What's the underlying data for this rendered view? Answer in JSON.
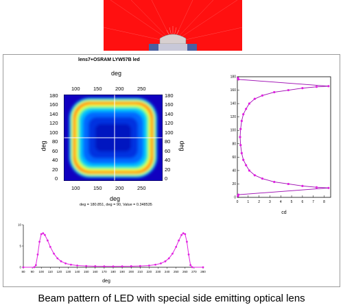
{
  "heatmap": {
    "title": "lens7+OSRAM LYW57B led",
    "x_axis_label": "deg",
    "y_axis_label": "deg",
    "x_ticks": [
      "100",
      "150",
      "200",
      "250"
    ],
    "y_ticks": [
      "0",
      "20",
      "40",
      "60",
      "80",
      "100",
      "120",
      "140",
      "160",
      "180"
    ],
    "readout": "deg = 180.851, deg = 90, Value = 0.348535",
    "crosshair_x": 180.851,
    "crosshair_y": 90
  },
  "caption": "Beam pattern of  LED with special side emitting optical lens",
  "chart_data": [
    {
      "type": "heatmap",
      "title": "lens7+OSRAM LYW57B led",
      "xlabel": "deg",
      "ylabel": "deg",
      "xlim": [
        80,
        270
      ],
      "ylim": [
        0,
        180
      ],
      "description_values": "square ring of high intensity around a low-intensity centre",
      "colors": [
        "#0000b0",
        "#0040ff",
        "#00c8ff",
        "#00ff80",
        "#ffff00",
        "#ff2000"
      ]
    },
    {
      "type": "line",
      "xlabel": "cd",
      "ylabel": "",
      "x_ticks": [
        "0",
        "1",
        "2",
        "3",
        "4",
        "5",
        "6",
        "7",
        "8"
      ],
      "y_ticks": [
        "0",
        "20",
        "40",
        "60",
        "80",
        "100",
        "120",
        "140",
        "160",
        "180"
      ],
      "xlim": [
        0,
        8.6
      ],
      "ylim": [
        0,
        180
      ],
      "color": "#e020e0",
      "series": [
        {
          "points": [
            [
              0.05,
              2
            ],
            [
              0.1,
              4
            ],
            [
              8.4,
              14
            ],
            [
              7.3,
              15
            ],
            [
              6,
              17
            ],
            [
              4.7,
              20
            ],
            [
              3.4,
              23
            ],
            [
              2.3,
              28
            ],
            [
              1.6,
              33
            ],
            [
              1.1,
              40
            ],
            [
              0.8,
              48
            ],
            [
              0.55,
              56
            ],
            [
              0.4,
              66
            ],
            [
              0.3,
              78
            ],
            [
              0.25,
              90
            ],
            [
              0.3,
              102
            ],
            [
              0.4,
              114
            ],
            [
              0.55,
              124
            ],
            [
              0.8,
              132
            ],
            [
              1.1,
              140
            ],
            [
              1.6,
              147
            ],
            [
              2.3,
              152
            ],
            [
              3.4,
              157
            ],
            [
              4.7,
              160
            ],
            [
              6,
              163
            ],
            [
              7.3,
              165
            ],
            [
              8.4,
              166
            ],
            [
              0.1,
              176
            ],
            [
              0.05,
              178
            ]
          ]
        }
      ]
    },
    {
      "type": "line",
      "xlabel": "deg",
      "ylabel": "",
      "x_ticks": [
        "80",
        "90",
        "100",
        "110",
        "120",
        "130",
        "140",
        "150",
        "160",
        "170",
        "180",
        "190",
        "200",
        "210",
        "220",
        "230",
        "240",
        "250",
        "260",
        "270",
        "280"
      ],
      "y_ticks": [
        "0",
        "5",
        "10"
      ],
      "xlim": [
        80,
        280
      ],
      "ylim": [
        0,
        10
      ],
      "color": "#e020e0",
      "series": [
        {
          "points": [
            [
              80,
              0
            ],
            [
              92,
              0
            ],
            [
              94,
              0.5
            ],
            [
              96,
              3
            ],
            [
              98,
              6
            ],
            [
              100,
              7.8
            ],
            [
              102,
              8
            ],
            [
              104,
              7.6
            ],
            [
              107,
              6.3
            ],
            [
              110,
              4.8
            ],
            [
              114,
              3.2
            ],
            [
              118,
              2.1
            ],
            [
              122,
              1.4
            ],
            [
              127,
              0.9
            ],
            [
              133,
              0.6
            ],
            [
              140,
              0.4
            ],
            [
              150,
              0.3
            ],
            [
              160,
              0.25
            ],
            [
              170,
              0.22
            ],
            [
              180,
              0.2
            ],
            [
              190,
              0.22
            ],
            [
              200,
              0.25
            ],
            [
              210,
              0.3
            ],
            [
              220,
              0.4
            ],
            [
              227,
              0.6
            ],
            [
              233,
              0.9
            ],
            [
              238,
              1.4
            ],
            [
              242,
              2.1
            ],
            [
              246,
              3.2
            ],
            [
              250,
              4.8
            ],
            [
              253,
              6.3
            ],
            [
              256,
              7.6
            ],
            [
              258,
              8
            ],
            [
              260,
              7.8
            ],
            [
              262,
              6
            ],
            [
              264,
              3
            ],
            [
              266,
              0.5
            ],
            [
              268,
              0
            ],
            [
              280,
              0
            ]
          ]
        }
      ]
    }
  ]
}
